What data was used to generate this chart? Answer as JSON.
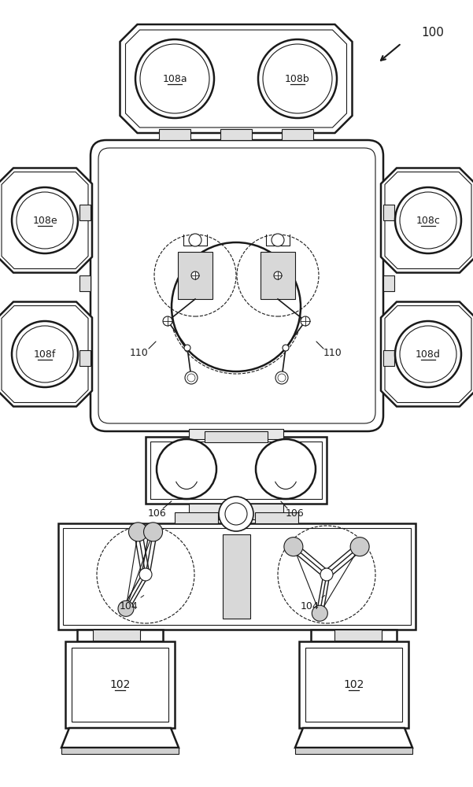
{
  "bg_color": "#ffffff",
  "line_color": "#1a1a1a",
  "label_100": "100",
  "label_102": "102",
  "label_104": "104",
  "label_106": "106",
  "label_108a": "108a",
  "label_108b": "108b",
  "label_108c": "108c",
  "label_108d": "108d",
  "label_108e": "108e",
  "label_108f": "108f",
  "label_110": "110"
}
